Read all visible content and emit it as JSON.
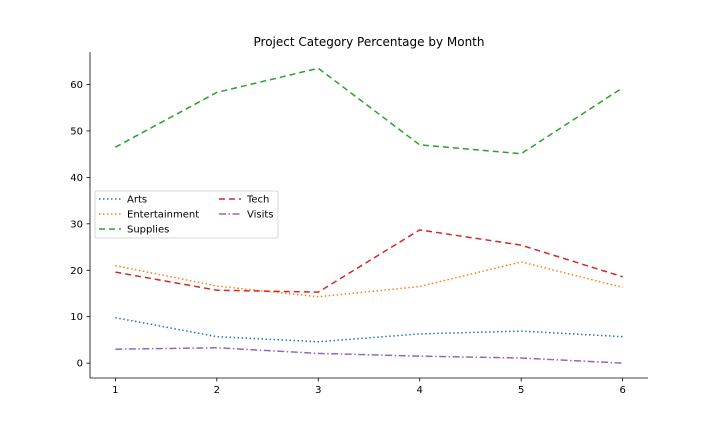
{
  "chart_data": {
    "type": "line",
    "title": "Project Category Percentage by Month",
    "xlabel": "",
    "ylabel": "",
    "x": [
      1,
      2,
      3,
      4,
      5,
      6
    ],
    "xlim": [
      0.75,
      6.25
    ],
    "ylim": [
      -3.2,
      67.0
    ],
    "yticks": [
      0,
      10,
      20,
      30,
      40,
      50,
      60
    ],
    "grid": false,
    "legend_placement": "center-left",
    "series": [
      {
        "name": "Arts",
        "color": "#1f77b4",
        "style": "dotted",
        "values": [
          9.8,
          5.7,
          4.6,
          6.3,
          6.9,
          5.7
        ]
      },
      {
        "name": "Entertainment",
        "color": "#ff7f0e",
        "style": "dotted",
        "values": [
          21.0,
          16.6,
          14.3,
          16.5,
          21.8,
          16.3
        ]
      },
      {
        "name": "Supplies",
        "color": "#2ca02c",
        "style": "dashed",
        "values": [
          46.5,
          58.3,
          63.5,
          47.0,
          45.1,
          59.3
        ]
      },
      {
        "name": "Tech",
        "color": "#d62728",
        "style": "dashed",
        "values": [
          19.6,
          15.7,
          15.3,
          28.7,
          25.4,
          18.6
        ]
      },
      {
        "name": "Visits",
        "color": "#9467bd",
        "style": "dashdot",
        "values": [
          3.0,
          3.3,
          2.1,
          1.5,
          1.1,
          0.0
        ]
      }
    ]
  }
}
